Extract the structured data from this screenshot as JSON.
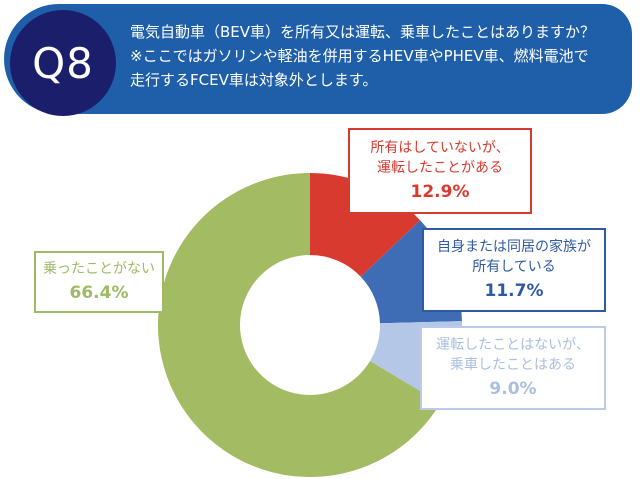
{
  "question": {
    "number": "Q8",
    "lines": [
      "電気自動車（BEV車）を所有又は運転、乗車したことはありますか？",
      "※ここではガソリンや軽油を併用するHEV車やPHEV車、燃料電池で",
      "走行するFCEV車は対象外とします。"
    ]
  },
  "colors": {
    "banner": "#1f5fa9",
    "circle": "#1b1f6b"
  },
  "chart_data": {
    "type": "pie",
    "donut": true,
    "slices": [
      {
        "label_lines": [
          "所有はしていないが、",
          "運転したことがある"
        ],
        "value": 12.9,
        "value_label": "12.9%",
        "color": "#d93a30"
      },
      {
        "label_lines": [
          "自身または同居の家族が",
          "所有している"
        ],
        "value": 11.7,
        "value_label": "11.7%",
        "color": "#3e6db5"
      },
      {
        "label_lines": [
          "運転したことはないが、",
          "乗車したことはある"
        ],
        "value": 9.0,
        "value_label": "9.0%",
        "color": "#b4c7e7"
      },
      {
        "label_lines": [
          "乗ったことがない"
        ],
        "value": 66.4,
        "value_label": "66.4%",
        "color": "#a3bb63"
      }
    ]
  }
}
